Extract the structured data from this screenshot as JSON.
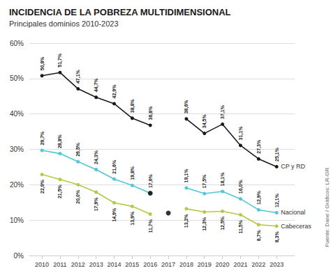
{
  "chart_data": {
    "type": "line",
    "title": "INCIDENCIA DE LA POBREZA MULTIDIMENSIONAL",
    "subtitle": "Principales dominios 2010-2023",
    "source": "Fuente: Dane / Gráficos: LR-GR",
    "x": [
      2010,
      2011,
      2012,
      2013,
      2014,
      2015,
      2016,
      2017,
      2018,
      2019,
      2020,
      2021,
      2022,
      2023
    ],
    "xlim": [
      2009.3,
      2024.0
    ],
    "xticks": [
      2010,
      2011,
      2012,
      2013,
      2014,
      2015,
      2016,
      2017,
      2018,
      2019,
      2020,
      2021,
      2022,
      2023
    ],
    "ylim": [
      0,
      60
    ],
    "yticks": [
      {
        "value": 0,
        "label": "0%"
      },
      {
        "value": 10,
        "label": "10%"
      },
      {
        "value": 20,
        "label": "20%"
      },
      {
        "value": 30,
        "label": "30%"
      },
      {
        "value": 40,
        "label": "40%"
      },
      {
        "value": 50,
        "label": "50%"
      },
      {
        "value": 60,
        "label": "60%"
      }
    ],
    "grid": true,
    "marker": "circle",
    "data_labels": true,
    "series": [
      {
        "annotation": "CP y RD",
        "color": "#1a1a1a",
        "values": [
          50.8,
          51.7,
          47.1,
          44.7,
          42.9,
          38.8,
          36.8,
          null,
          38.6,
          34.5,
          37.1,
          31.1,
          27.3,
          25.1
        ],
        "value_labels": [
          "50,8%",
          "51,7%",
          "47,1%",
          "44,7%",
          "42,9%",
          "38,8%",
          "36,8%",
          null,
          "38,6%",
          "34,5%",
          "37,1%",
          "31,1%",
          "27,3%",
          "25,1%"
        ]
      },
      {
        "annotation": "Nacional",
        "color": "#4dc8d8",
        "values": [
          29.7,
          28.8,
          26.5,
          24.3,
          21.6,
          19.8,
          17.6,
          null,
          19.1,
          17.5,
          18.1,
          16.0,
          12.9,
          12.1
        ],
        "value_labels": [
          "29,7%",
          "28,8%",
          "26,5%",
          "24,3%",
          "21,6%",
          "19,8%",
          "17,6%",
          null,
          "19,1%",
          "17,5%",
          "18,1%",
          "16,0%",
          "12,9%",
          "12,1%"
        ]
      },
      {
        "annotation": "Cabeceras",
        "color": "#b8c840",
        "values": [
          22.9,
          21.5,
          20.0,
          17.9,
          14.9,
          13.9,
          11.7,
          null,
          13.2,
          12.3,
          12.5,
          11.5,
          8.7,
          8.3
        ],
        "value_labels": [
          "22,9%",
          "21,5%",
          "20,0%",
          "17,9%",
          "14,9%",
          "13,9%",
          "11,7%",
          null,
          "13,2%",
          "12,3%",
          "12,5%",
          "11,5%",
          "8,7%",
          "8,3%"
        ]
      }
    ],
    "highlight_points": [
      {
        "x": 2016,
        "y": 17.6,
        "color": "#000000"
      },
      {
        "x": 2017,
        "y": 12.0,
        "color": "#000000"
      }
    ]
  }
}
